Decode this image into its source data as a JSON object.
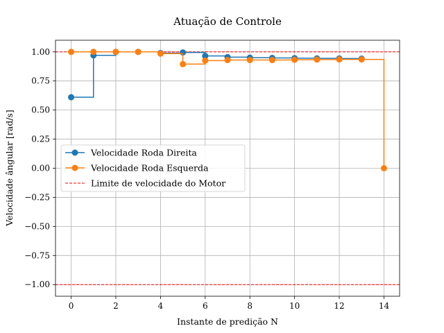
{
  "chart_data": {
    "type": "line",
    "title": "Atuação de Controle",
    "xlabel": "Instante de predição N",
    "ylabel": "Velocidade ângular [rad/s]",
    "xlim": [
      -0.7,
      14.7
    ],
    "ylim": [
      -1.1,
      1.1
    ],
    "xticks": [
      0,
      2,
      4,
      6,
      8,
      10,
      12,
      14
    ],
    "xtick_labels": [
      "0",
      "2",
      "4",
      "6",
      "8",
      "10",
      "12",
      "14"
    ],
    "yticks": [
      -1.0,
      -0.75,
      -0.5,
      -0.25,
      0.0,
      0.25,
      0.5,
      0.75,
      1.0
    ],
    "ytick_labels": [
      "−1.00",
      "−0.75",
      "−0.50",
      "−0.25",
      "0.00",
      "0.25",
      "0.50",
      "0.75",
      "1.00"
    ],
    "grid": true,
    "step": "post",
    "legend_position": "center-left",
    "series": [
      {
        "name": "Velocidade Roda Direita",
        "color": "#1f77b4",
        "marker": "circle",
        "x": [
          0,
          1,
          2,
          3,
          4,
          5,
          6,
          7,
          8,
          9,
          10,
          11,
          12,
          13
        ],
        "values": [
          0.61,
          0.97,
          1.0,
          1.0,
          0.99,
          0.995,
          0.965,
          0.955,
          0.95,
          0.948,
          0.946,
          0.944,
          0.943,
          0.942
        ]
      },
      {
        "name": "Velocidade Roda Esquerda",
        "color": "#ff7f0e",
        "marker": "circle",
        "x": [
          0,
          1,
          2,
          3,
          4,
          5,
          6,
          7,
          8,
          9,
          10,
          11,
          12,
          13,
          14
        ],
        "values": [
          1.0,
          1.0,
          1.0,
          1.0,
          0.985,
          0.895,
          0.925,
          0.93,
          0.93,
          0.93,
          0.932,
          0.934,
          0.935,
          0.935,
          0.0
        ]
      }
    ],
    "reference_lines": [
      {
        "name": "Limite de velocidade do Motor",
        "color": "#ff0000",
        "style": "dashed",
        "values": [
          1.0,
          -1.0
        ]
      }
    ]
  }
}
